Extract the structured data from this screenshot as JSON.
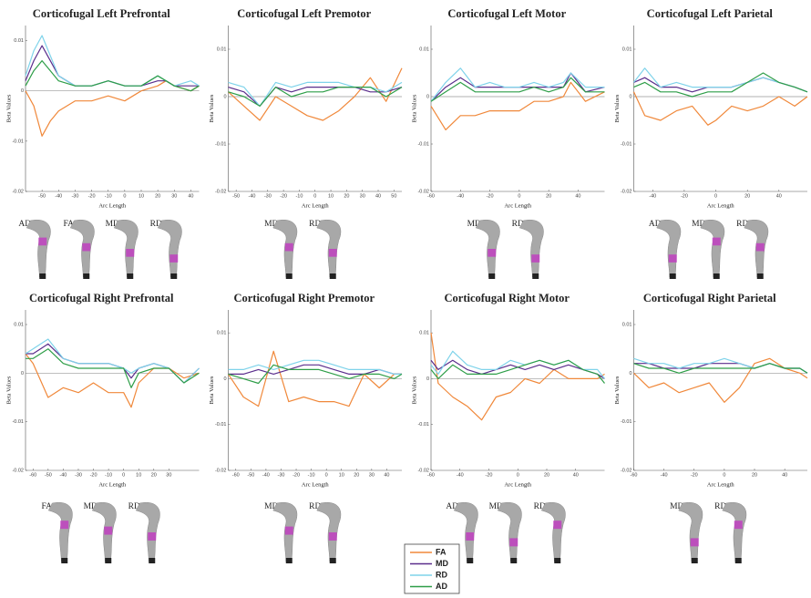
{
  "legend": {
    "entries": [
      {
        "label": "FA",
        "color": "#f0883a"
      },
      {
        "label": "MD",
        "color": "#5a2d8c"
      },
      {
        "label": "RD",
        "color": "#7fd3ea"
      },
      {
        "label": "AD",
        "color": "#2e9e48"
      }
    ]
  },
  "chart_data": [
    {
      "type": "line",
      "title": "Corticofugal Left Prefrontal",
      "xlabel": "Arc Length",
      "ylabel": "Beta Values",
      "x": [
        -60,
        -55,
        -50,
        -45,
        -40,
        -30,
        -20,
        -10,
        0,
        10,
        20,
        25,
        30,
        40,
        45
      ],
      "series": [
        {
          "values": [
            0.0,
            -0.003,
            -0.009,
            -0.006,
            -0.004,
            -0.002,
            -0.002,
            -0.001,
            -0.002,
            0.0,
            0.001,
            0.002,
            0.001,
            0.0,
            0.001
          ]
        },
        {
          "values": [
            0.002,
            0.006,
            0.009,
            0.006,
            0.003,
            0.001,
            0.001,
            0.002,
            0.001,
            0.001,
            0.002,
            0.002,
            0.001,
            0.001,
            0.001
          ]
        },
        {
          "values": [
            0.003,
            0.008,
            0.011,
            0.007,
            0.003,
            0.001,
            0.001,
            0.002,
            0.001,
            0.001,
            0.003,
            0.002,
            0.001,
            0.002,
            0.001
          ]
        },
        {
          "values": [
            0.001,
            0.004,
            0.006,
            0.004,
            0.002,
            0.001,
            0.001,
            0.002,
            0.001,
            0.001,
            0.003,
            0.002,
            0.001,
            0.0,
            0.001
          ]
        }
      ],
      "xlim": [
        -60,
        45
      ],
      "xticks": [
        -50,
        -40,
        -30,
        -20,
        -10,
        0,
        10,
        20,
        30,
        40
      ],
      "ylim": [
        -0.02,
        0.013
      ],
      "yticks": [
        -0.02,
        -0.01,
        0,
        0.01
      ],
      "tract_labels": [
        "AD",
        "FA",
        "MD",
        "RD"
      ]
    },
    {
      "type": "line",
      "title": "Corticofugal Left Premotor",
      "xlabel": "Arc Length",
      "ylabel": "Beta Values",
      "x": [
        -55,
        -45,
        -35,
        -25,
        -15,
        -5,
        5,
        15,
        25,
        35,
        45,
        55
      ],
      "series": [
        {
          "values": [
            0.001,
            -0.002,
            -0.005,
            0.0,
            -0.002,
            -0.004,
            -0.005,
            -0.003,
            0.0,
            0.004,
            -0.001,
            0.006
          ]
        },
        {
          "values": [
            0.002,
            0.001,
            -0.002,
            0.002,
            0.001,
            0.002,
            0.002,
            0.002,
            0.002,
            0.001,
            0.001,
            0.002
          ]
        },
        {
          "values": [
            0.003,
            0.002,
            -0.002,
            0.003,
            0.002,
            0.003,
            0.003,
            0.003,
            0.002,
            0.002,
            0.001,
            0.003
          ]
        },
        {
          "values": [
            0.001,
            0.0,
            -0.002,
            0.002,
            0.0,
            0.001,
            0.001,
            0.002,
            0.002,
            0.002,
            0.0,
            0.002
          ]
        }
      ],
      "xlim": [
        -55,
        55
      ],
      "xticks": [
        -50,
        -40,
        -30,
        -20,
        -10,
        0,
        10,
        20,
        30,
        40,
        50
      ],
      "ylim": [
        -0.02,
        0.015
      ],
      "yticks": [
        -0.02,
        -0.01,
        0,
        0.01
      ],
      "tract_labels": [
        "MD",
        "RD"
      ]
    },
    {
      "type": "line",
      "title": "Corticofugal Left Motor",
      "xlabel": "Arc Length",
      "ylabel": "Beta Values",
      "x": [
        -60,
        -50,
        -40,
        -30,
        -20,
        -10,
        0,
        10,
        20,
        30,
        35,
        45,
        58
      ],
      "series": [
        {
          "values": [
            -0.002,
            -0.007,
            -0.004,
            -0.004,
            -0.003,
            -0.003,
            -0.003,
            -0.001,
            -0.001,
            0.0,
            0.003,
            -0.001,
            0.001
          ]
        },
        {
          "values": [
            -0.001,
            0.002,
            0.004,
            0.002,
            0.002,
            0.002,
            0.002,
            0.002,
            0.002,
            0.002,
            0.005,
            0.001,
            0.002
          ]
        },
        {
          "values": [
            -0.001,
            0.003,
            0.006,
            0.002,
            0.003,
            0.002,
            0.002,
            0.003,
            0.002,
            0.003,
            0.005,
            0.002,
            0.002
          ]
        },
        {
          "values": [
            -0.001,
            0.001,
            0.003,
            0.001,
            0.001,
            0.001,
            0.001,
            0.002,
            0.001,
            0.002,
            0.004,
            0.001,
            0.001
          ]
        }
      ],
      "xlim": [
        -60,
        58
      ],
      "xticks": [
        -60,
        -40,
        -20,
        0,
        20,
        40
      ],
      "ylim": [
        -0.02,
        0.015
      ],
      "yticks": [
        -0.02,
        -0.01,
        0,
        0.01
      ],
      "tract_labels": [
        "MD",
        "RD"
      ]
    },
    {
      "type": "line",
      "title": "Corticofugal Left Parietal",
      "xlabel": "Arc Length",
      "ylabel": "Beta Values",
      "x": [
        -52,
        -45,
        -35,
        -25,
        -15,
        -5,
        0,
        10,
        20,
        30,
        40,
        50,
        58
      ],
      "series": [
        {
          "values": [
            0.001,
            -0.004,
            -0.005,
            -0.003,
            -0.002,
            -0.006,
            -0.005,
            -0.002,
            -0.003,
            -0.002,
            0.0,
            -0.002,
            0.0
          ]
        },
        {
          "values": [
            0.003,
            0.004,
            0.002,
            0.002,
            0.001,
            0.002,
            0.002,
            0.002,
            0.003,
            0.004,
            0.003,
            0.002,
            0.001
          ]
        },
        {
          "values": [
            0.003,
            0.006,
            0.002,
            0.003,
            0.002,
            0.002,
            0.002,
            0.002,
            0.003,
            0.004,
            0.003,
            0.002,
            0.001
          ]
        },
        {
          "values": [
            0.002,
            0.003,
            0.001,
            0.001,
            0.0,
            0.001,
            0.001,
            0.001,
            0.003,
            0.005,
            0.003,
            0.002,
            0.001
          ]
        }
      ],
      "xlim": [
        -52,
        58
      ],
      "xticks": [
        -40,
        -20,
        0,
        20,
        40
      ],
      "ylim": [
        -0.02,
        0.015
      ],
      "yticks": [
        -0.02,
        -0.01,
        0,
        0.01
      ],
      "tract_labels": [
        "AD",
        "MD",
        "RD"
      ]
    },
    {
      "type": "line",
      "title": "Corticofugal Right Prefrontal",
      "xlabel": "Arc Length",
      "ylabel": "Beta Values",
      "x": [
        -65,
        -60,
        -50,
        -40,
        -30,
        -20,
        -10,
        0,
        5,
        10,
        20,
        30,
        40,
        50
      ],
      "series": [
        {
          "values": [
            0.004,
            0.002,
            -0.005,
            -0.003,
            -0.004,
            -0.002,
            -0.004,
            -0.004,
            -0.007,
            -0.002,
            0.001,
            0.001,
            -0.001,
            0.0
          ]
        },
        {
          "values": [
            0.004,
            0.004,
            0.006,
            0.003,
            0.002,
            0.002,
            0.002,
            0.001,
            -0.001,
            0.001,
            0.002,
            0.001,
            -0.002,
            0.001
          ]
        },
        {
          "values": [
            0.004,
            0.005,
            0.007,
            0.003,
            0.002,
            0.002,
            0.002,
            0.001,
            0.0,
            0.001,
            0.002,
            0.001,
            -0.002,
            0.001
          ]
        },
        {
          "values": [
            0.003,
            0.003,
            0.005,
            0.002,
            0.001,
            0.001,
            0.001,
            0.001,
            -0.003,
            0.0,
            0.001,
            0.001,
            -0.002,
            0.0
          ]
        }
      ],
      "xlim": [
        -65,
        50
      ],
      "xticks": [
        -60,
        -50,
        -40,
        -30,
        -20,
        -10,
        0,
        10,
        20,
        30
      ],
      "ylim": [
        -0.02,
        0.013
      ],
      "yticks": [
        -0.02,
        -0.01,
        0,
        0.01
      ],
      "tract_labels": [
        "FA",
        "MD",
        "RD"
      ]
    },
    {
      "type": "line",
      "title": "Corticofugal Right Premotor",
      "xlabel": "Arc Length",
      "ylabel": "Beta Values",
      "x": [
        -65,
        -55,
        -45,
        -35,
        -25,
        -15,
        -5,
        5,
        15,
        25,
        35,
        45,
        50
      ],
      "series": [
        {
          "values": [
            0.001,
            -0.004,
            -0.006,
            0.006,
            -0.005,
            -0.004,
            -0.005,
            -0.005,
            -0.006,
            0.001,
            -0.002,
            0.001,
            0.001
          ]
        },
        {
          "values": [
            0.001,
            0.001,
            0.002,
            0.001,
            0.002,
            0.003,
            0.003,
            0.002,
            0.001,
            0.001,
            0.002,
            0.001,
            0.001
          ]
        },
        {
          "values": [
            0.002,
            0.002,
            0.003,
            0.002,
            0.003,
            0.004,
            0.004,
            0.003,
            0.002,
            0.002,
            0.002,
            0.001,
            0.001
          ]
        },
        {
          "values": [
            0.001,
            0.0,
            -0.001,
            0.003,
            0.002,
            0.002,
            0.002,
            0.001,
            0.0,
            0.001,
            0.001,
            0.0,
            0.001
          ]
        }
      ],
      "xlim": [
        -65,
        50
      ],
      "xticks": [
        -60,
        -50,
        -40,
        -30,
        -20,
        -10,
        0,
        10,
        20,
        30,
        40
      ],
      "ylim": [
        -0.02,
        0.015
      ],
      "yticks": [
        -0.02,
        -0.01,
        0,
        0.01
      ],
      "tract_labels": [
        "MD",
        "RD"
      ]
    },
    {
      "type": "line",
      "title": "Corticofugal Right Motor",
      "xlabel": "Arc Length",
      "ylabel": "Beta Values",
      "x": [
        -60,
        -55,
        -45,
        -35,
        -25,
        -15,
        -5,
        5,
        15,
        25,
        35,
        45,
        55,
        60
      ],
      "series": [
        {
          "values": [
            0.01,
            -0.001,
            -0.004,
            -0.006,
            -0.009,
            -0.004,
            -0.003,
            0.0,
            -0.001,
            0.002,
            0.0,
            0.0,
            0.0,
            0.001
          ]
        },
        {
          "values": [
            0.004,
            0.002,
            0.004,
            0.002,
            0.001,
            0.002,
            0.003,
            0.002,
            0.003,
            0.002,
            0.003,
            0.002,
            0.001,
            0.0
          ]
        },
        {
          "values": [
            0.003,
            0.001,
            0.006,
            0.003,
            0.002,
            0.002,
            0.004,
            0.003,
            0.004,
            0.003,
            0.004,
            0.002,
            0.002,
            0.0
          ]
        },
        {
          "values": [
            0.002,
            0.0,
            0.003,
            0.001,
            0.001,
            0.001,
            0.002,
            0.003,
            0.004,
            0.003,
            0.004,
            0.002,
            0.001,
            -0.001
          ]
        }
      ],
      "xlim": [
        -60,
        60
      ],
      "xticks": [
        -60,
        -40,
        -20,
        0,
        20,
        40
      ],
      "ylim": [
        -0.02,
        0.015
      ],
      "yticks": [
        -0.02,
        -0.01,
        0,
        0.01
      ],
      "tract_labels": [
        "AD",
        "MD",
        "RD"
      ]
    },
    {
      "type": "line",
      "title": "Corticofugal Right Parietal",
      "xlabel": "Arc Length",
      "ylabel": "Beta Values",
      "x": [
        -60,
        -50,
        -40,
        -30,
        -20,
        -10,
        0,
        10,
        20,
        30,
        40,
        50,
        55
      ],
      "series": [
        {
          "values": [
            0.0,
            -0.003,
            -0.002,
            -0.004,
            -0.003,
            -0.002,
            -0.006,
            -0.003,
            0.002,
            0.003,
            0.001,
            0.0,
            -0.001
          ]
        },
        {
          "values": [
            0.002,
            0.002,
            0.001,
            0.001,
            0.001,
            0.002,
            0.002,
            0.002,
            0.001,
            0.002,
            0.001,
            0.001,
            0.0
          ]
        },
        {
          "values": [
            0.003,
            0.002,
            0.002,
            0.001,
            0.002,
            0.002,
            0.003,
            0.002,
            0.001,
            0.002,
            0.001,
            0.001,
            0.0
          ]
        },
        {
          "values": [
            0.002,
            0.001,
            0.001,
            0.0,
            0.001,
            0.001,
            0.001,
            0.001,
            0.001,
            0.002,
            0.001,
            0.001,
            0.0
          ]
        }
      ],
      "xlim": [
        -60,
        55
      ],
      "xticks": [
        -60,
        -40,
        -20,
        0,
        20,
        40
      ],
      "ylim": [
        -0.02,
        0.013
      ],
      "yticks": [
        -0.02,
        -0.01,
        0,
        0.01
      ],
      "tract_labels": [
        "MD",
        "RD"
      ]
    }
  ]
}
